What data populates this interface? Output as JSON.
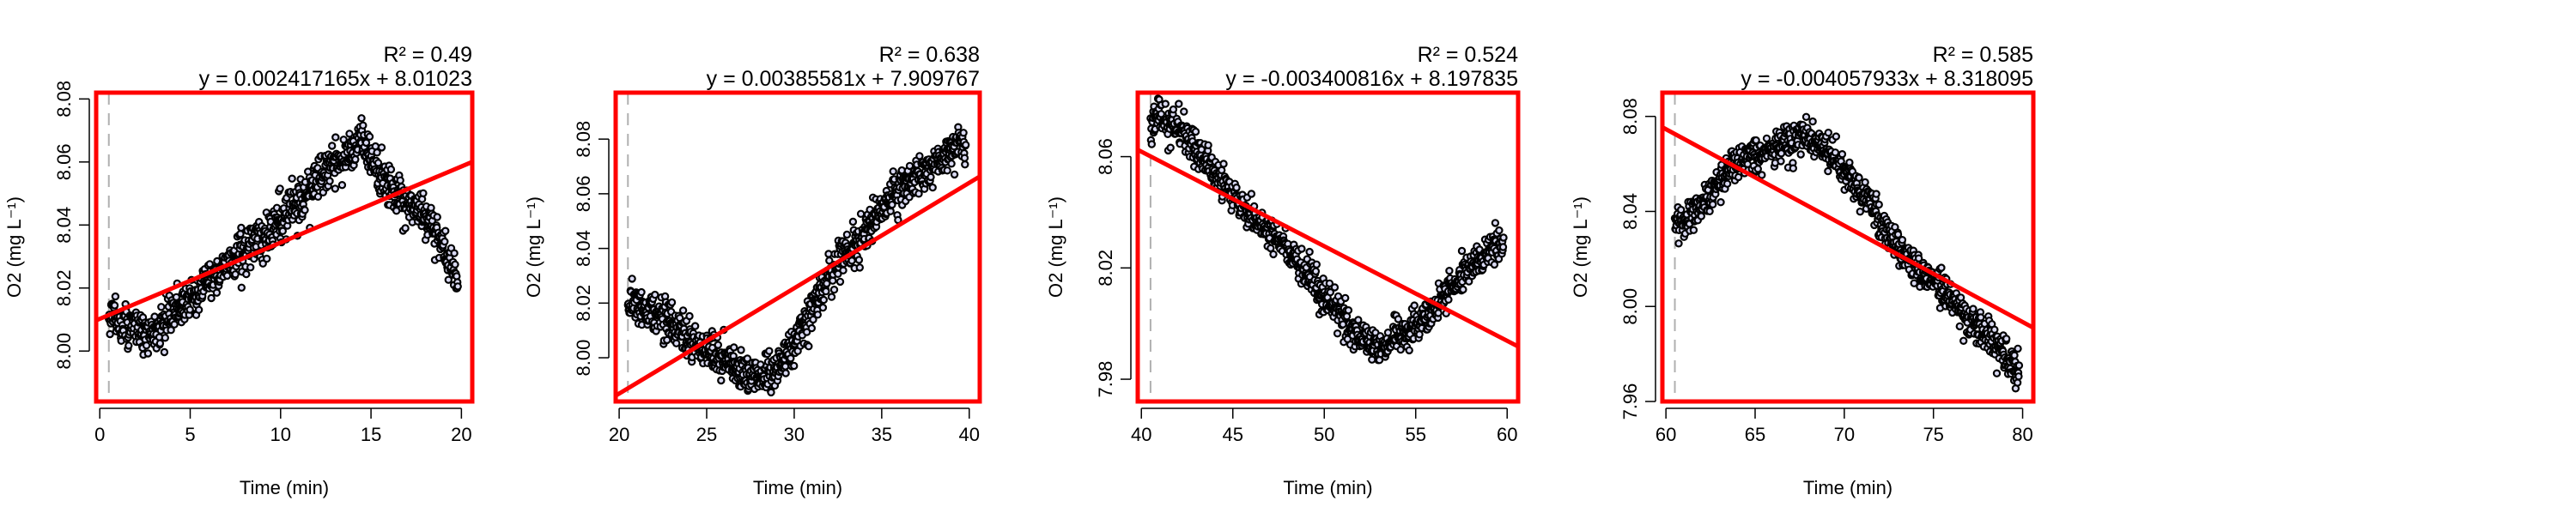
{
  "colors": {
    "frame": "#ff0000",
    "fit_line": "#ff0000",
    "points_stroke": "#000000",
    "points_fill": "#d9d9f2",
    "start_marker": "#b0b0b0"
  },
  "chart_data": [
    {
      "type": "scatter",
      "xlabel": "Time (min)",
      "ylabel": "O2 (mg L⁻¹)",
      "r2_label": "R² = 0.49",
      "equation": "y = 0.002417165x + 8.01023",
      "xlim": [
        -0.2,
        20.6
      ],
      "ylim": [
        7.984,
        8.082
      ],
      "xticks": [
        "0",
        "5",
        "10",
        "15",
        "20"
      ],
      "xtick_values": [
        0,
        5,
        10,
        15,
        20
      ],
      "yticks": [
        "8.00",
        "8.02",
        "8.04",
        "8.06",
        "8.08"
      ],
      "ytick_values": [
        8.0,
        8.02,
        8.04,
        8.06,
        8.08
      ],
      "start_marker_x": 0.5,
      "fit": {
        "slope": 0.002417165,
        "intercept": 8.01023
      },
      "trend_x": [
        0.5,
        1,
        2,
        3,
        4,
        5,
        6,
        7,
        8,
        9,
        10,
        11,
        12,
        13,
        14,
        14.5,
        15,
        16,
        17,
        18,
        19,
        19.8
      ],
      "trend_y": [
        8.011,
        8.01,
        8.007,
        8.005,
        8.012,
        8.017,
        8.022,
        8.027,
        8.032,
        8.036,
        8.042,
        8.047,
        8.054,
        8.059,
        8.064,
        8.068,
        8.06,
        8.053,
        8.048,
        8.043,
        8.033,
        8.022
      ],
      "noise": 0.006,
      "n_points": 900
    },
    {
      "type": "scatter",
      "xlabel": "Time (min)",
      "ylabel": "O2 (mg L⁻¹)",
      "r2_label": "R² = 0.638",
      "equation": "y = 0.00385581x + 7.909767",
      "xlim": [
        19.8,
        40.6
      ],
      "ylim": [
        7.984,
        8.097
      ],
      "xticks": [
        "20",
        "25",
        "30",
        "35",
        "40"
      ],
      "xtick_values": [
        20,
        25,
        30,
        35,
        40
      ],
      "yticks": [
        "8.00",
        "8.02",
        "8.04",
        "8.06",
        "8.08"
      ],
      "ytick_values": [
        8.0,
        8.02,
        8.04,
        8.06,
        8.08
      ],
      "start_marker_x": 20.5,
      "fit": {
        "slope": 0.00385581,
        "intercept": 7.909767
      },
      "trend_x": [
        20.5,
        21,
        22,
        23,
        24,
        25,
        26,
        27,
        28,
        29,
        30,
        31,
        32,
        33,
        34,
        35,
        36,
        37,
        38,
        39,
        40
      ],
      "trend_y": [
        8.021,
        8.02,
        8.017,
        8.012,
        8.006,
        8.003,
        7.999,
        7.995,
        7.993,
        7.996,
        8.005,
        8.018,
        8.03,
        8.038,
        8.046,
        8.055,
        8.061,
        8.066,
        8.071,
        8.076,
        8.08
      ],
      "noise": 0.0065,
      "n_points": 900
    },
    {
      "type": "scatter",
      "xlabel": "Time (min)",
      "ylabel": "O2 (mg L⁻¹)",
      "r2_label": "R² = 0.524",
      "equation": "y = -0.003400816x + 8.197835",
      "xlim": [
        39.8,
        60.6
      ],
      "ylim": [
        7.972,
        8.083
      ],
      "xticks": [
        "40",
        "45",
        "50",
        "55",
        "60"
      ],
      "xtick_values": [
        40,
        45,
        50,
        55,
        60
      ],
      "yticks": [
        "7.98",
        "8.02",
        "8.06"
      ],
      "ytick_values": [
        7.98,
        8.02,
        8.06
      ],
      "start_marker_x": 40.5,
      "fit": {
        "slope": -0.003400816,
        "intercept": 8.197835
      },
      "trend_x": [
        40.5,
        41,
        42,
        43,
        44,
        45,
        46,
        47,
        48,
        49,
        50,
        51,
        52,
        53,
        54,
        55,
        56,
        57,
        58,
        59,
        60
      ],
      "trend_y": [
        8.073,
        8.075,
        8.07,
        8.062,
        8.054,
        8.046,
        8.04,
        8.033,
        8.026,
        8.019,
        8.01,
        8.002,
        7.995,
        7.992,
        7.994,
        8.0,
        8.006,
        8.014,
        8.021,
        8.026,
        8.03
      ],
      "noise": 0.0055,
      "n_points": 900
    },
    {
      "type": "scatter",
      "xlabel": "Time (min)",
      "ylabel": "O2 (mg L⁻¹)",
      "r2_label": "R² = 0.585",
      "equation": "y = -0.004057933x + 8.318095",
      "xlim": [
        59.8,
        80.6
      ],
      "ylim": [
        7.96,
        8.09
      ],
      "xticks": [
        "60",
        "65",
        "70",
        "75",
        "80"
      ],
      "xtick_values": [
        60,
        65,
        70,
        75,
        80
      ],
      "yticks": [
        "7.96",
        "8.00",
        "8.04",
        "8.08"
      ],
      "ytick_values": [
        7.96,
        8.0,
        8.04,
        8.08
      ],
      "start_marker_x": 60.5,
      "fit": {
        "slope": -0.004057933,
        "intercept": 8.318095
      },
      "trend_x": [
        60.5,
        61,
        62,
        63,
        64,
        65,
        66,
        67,
        68,
        69,
        70,
        71,
        72,
        73,
        74,
        75,
        76,
        77,
        78,
        79,
        80
      ],
      "trend_y": [
        8.037,
        8.036,
        8.043,
        8.053,
        8.06,
        8.064,
        8.066,
        8.069,
        8.071,
        8.066,
        8.057,
        8.048,
        8.036,
        8.025,
        8.018,
        8.011,
        8.003,
        7.995,
        7.988,
        7.98,
        7.97
      ],
      "noise": 0.0065,
      "n_points": 900
    }
  ]
}
